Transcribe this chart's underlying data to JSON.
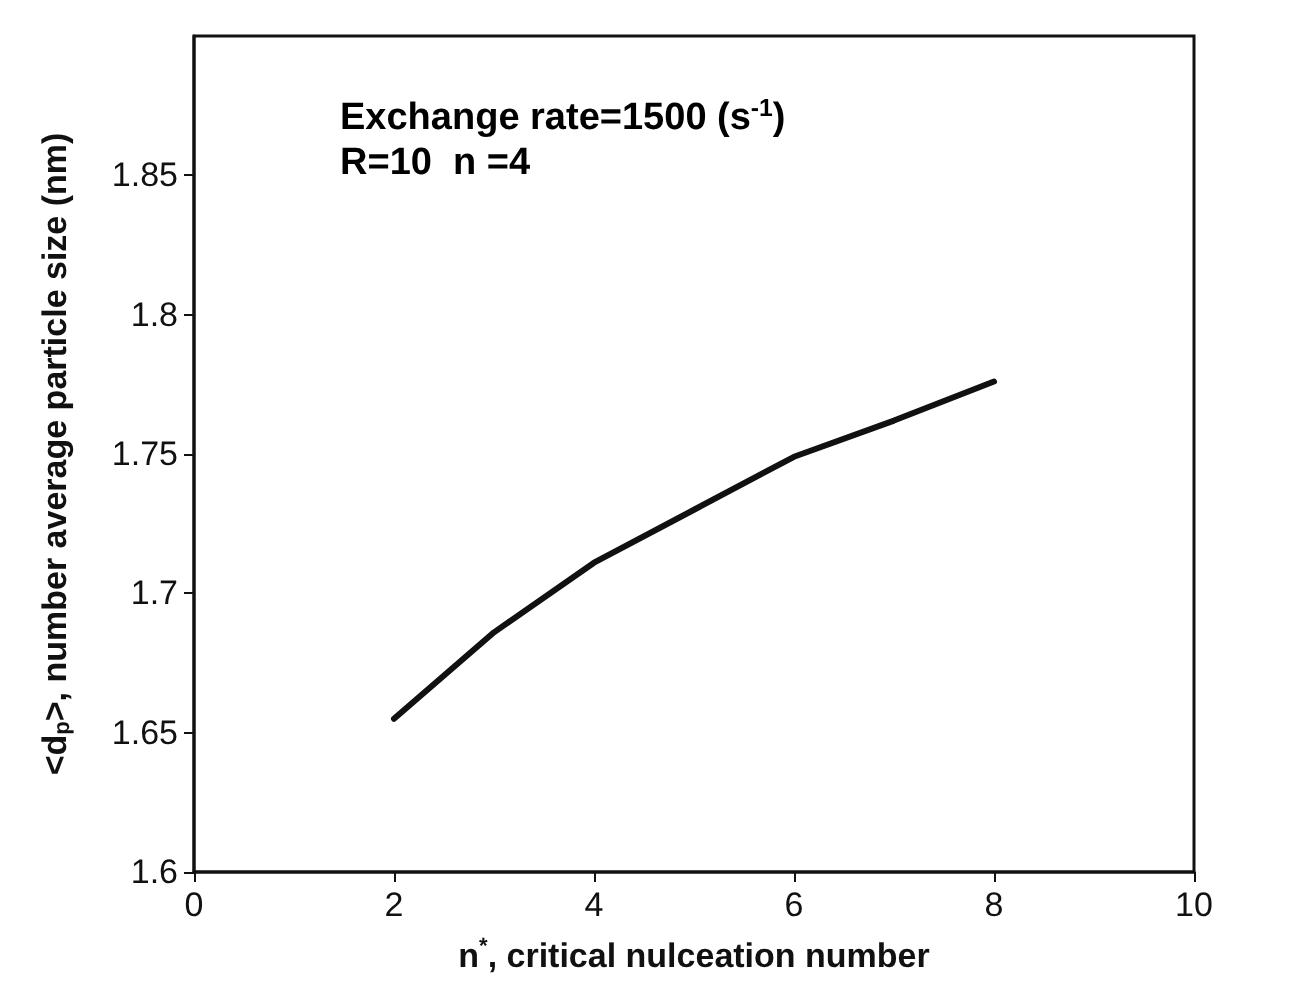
{
  "chart_data": {
    "type": "line",
    "xlabel": "n$^{*}$, critical nulceation number",
    "ylabel": "<d$_{p}$>, number average particle size (nm)",
    "annotations": [
      "Exchange rate=1500 (s$^{-1}$)",
      "R=10  n =4"
    ],
    "x": [
      2,
      3,
      4,
      5,
      6,
      7,
      8
    ],
    "series": [
      {
        "color": "#111111",
        "values": [
          1.655,
          1.686,
          1.711,
          1.73,
          1.749,
          1.762,
          1.776
        ]
      }
    ],
    "xlim": [
      0,
      10
    ],
    "xticks": [
      0,
      2,
      4,
      6,
      8,
      10
    ],
    "ylim": [
      1.6,
      1.9
    ],
    "yticks": [
      1.6,
      1.65,
      1.7,
      1.75,
      1.8,
      1.85
    ],
    "grid": false,
    "marker": "none",
    "line_style": "solid"
  }
}
